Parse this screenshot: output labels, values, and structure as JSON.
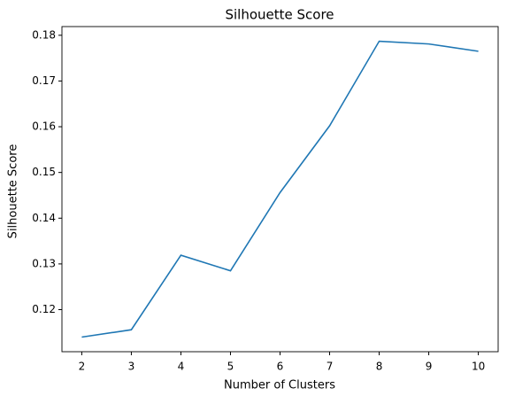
{
  "chart_data": {
    "type": "line",
    "title": "Silhouette Score",
    "x_label": "Number of Clusters",
    "y_label": "Silhouette Score",
    "x": [
      2,
      3,
      4,
      5,
      6,
      7,
      8,
      9,
      10
    ],
    "series": [
      {
        "name": "Silhouette Score",
        "color": "#1f77b4",
        "values": [
          0.114,
          0.1156,
          0.1319,
          0.1285,
          0.1456,
          0.1602,
          0.1787,
          0.1781,
          0.1765
        ]
      }
    ],
    "xlim": [
      1.6,
      10.4
    ],
    "xticks": [
      2,
      3,
      4,
      5,
      6,
      7,
      8,
      9,
      10
    ],
    "ylim": [
      0.1108,
      0.1819
    ],
    "yticks": [
      0.12,
      0.13,
      0.14,
      0.15,
      0.16,
      0.17,
      0.18
    ],
    "grid": false
  }
}
